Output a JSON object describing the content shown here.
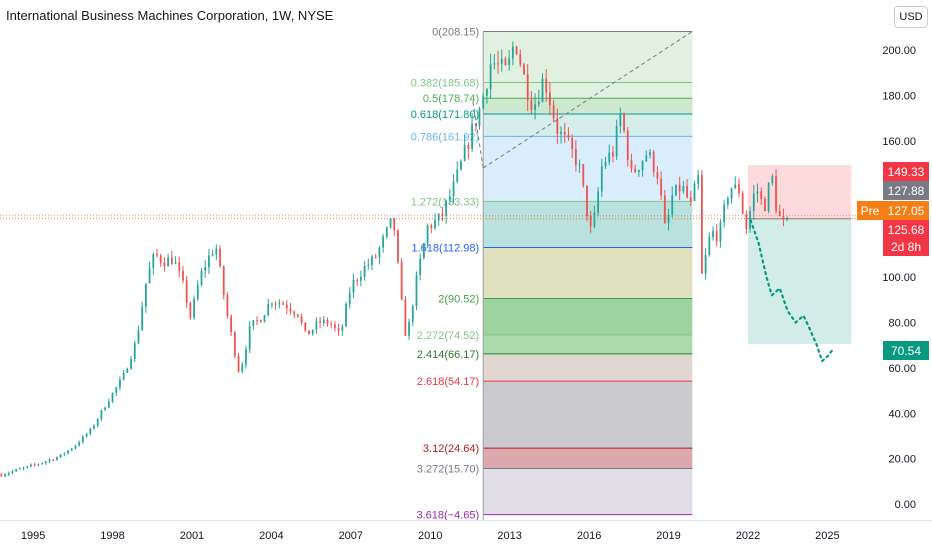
{
  "header": {
    "symbol_title": "International Business Machines Corporation, 1W, NYSE",
    "currency_button": "USD"
  },
  "colors": {
    "up": "#26a69a",
    "down": "#ef5350",
    "background": "#ffffff",
    "axis_text": "#131722"
  },
  "chart_data": {
    "type": "candlestick",
    "title": "International Business Machines Corporation, 1W, NYSE",
    "x_ticks": [
      "1995",
      "1998",
      "2001",
      "2004",
      "2007",
      "2010",
      "2013",
      "2016",
      "2019",
      "2022",
      "2025"
    ],
    "y_ticks": [
      "0.00",
      "20.00",
      "40.00",
      "60.00",
      "80.00",
      "100.00",
      "120.00",
      "140.00",
      "160.00",
      "180.00",
      "200.00"
    ],
    "y_range": [
      -7,
      222
    ],
    "x_range": [
      1993.75,
      2027.1
    ],
    "price_path": [
      [
        1993.8,
        13
      ],
      [
        1995.0,
        17
      ],
      [
        1996.0,
        21
      ],
      [
        1996.6,
        26
      ],
      [
        1997.2,
        33
      ],
      [
        1997.8,
        45
      ],
      [
        1998.4,
        56
      ],
      [
        1998.9,
        72
      ],
      [
        1999.3,
        100
      ],
      [
        1999.6,
        110
      ],
      [
        1999.9,
        107
      ],
      [
        2000.3,
        108
      ],
      [
        2000.7,
        95
      ],
      [
        2000.95,
        82
      ],
      [
        2001.3,
        100
      ],
      [
        2001.6,
        108
      ],
      [
        2001.9,
        114
      ],
      [
        2002.3,
        85
      ],
      [
        2002.6,
        68
      ],
      [
        2002.8,
        57
      ],
      [
        2003.2,
        78
      ],
      [
        2003.6,
        82
      ],
      [
        2004.0,
        90
      ],
      [
        2004.5,
        88
      ],
      [
        2005.0,
        84
      ],
      [
        2005.3,
        74
      ],
      [
        2005.8,
        80
      ],
      [
        2006.2,
        80
      ],
      [
        2006.6,
        74
      ],
      [
        2007.0,
        96
      ],
      [
        2007.5,
        104
      ],
      [
        2007.9,
        108
      ],
      [
        2008.3,
        118
      ],
      [
        2008.6,
        126
      ],
      [
        2008.9,
        90
      ],
      [
        2009.1,
        72
      ],
      [
        2009.5,
        100
      ],
      [
        2009.9,
        122
      ],
      [
        2010.4,
        126
      ],
      [
        2010.9,
        140
      ],
      [
        2011.5,
        162
      ],
      [
        2011.9,
        175
      ],
      [
        2012.3,
        195
      ],
      [
        2012.9,
        190
      ],
      [
        2013.2,
        205
      ],
      [
        2013.6,
        185
      ],
      [
        2013.9,
        175
      ],
      [
        2014.3,
        188
      ],
      [
        2014.8,
        165
      ],
      [
        2015.2,
        158
      ],
      [
        2015.6,
        150
      ],
      [
        2015.9,
        130
      ],
      [
        2016.1,
        118
      ],
      [
        2016.5,
        150
      ],
      [
        2016.9,
        155
      ],
      [
        2017.2,
        172
      ],
      [
        2017.6,
        145
      ],
      [
        2017.9,
        150
      ],
      [
        2018.2,
        155
      ],
      [
        2018.6,
        145
      ],
      [
        2018.9,
        118
      ],
      [
        2019.1,
        135
      ],
      [
        2019.5,
        140
      ],
      [
        2019.9,
        130
      ],
      [
        2020.1,
        150
      ],
      [
        2020.25,
        100
      ],
      [
        2020.6,
        120
      ],
      [
        2020.9,
        118
      ],
      [
        2021.3,
        140
      ],
      [
        2021.7,
        138
      ],
      [
        2021.9,
        120
      ],
      [
        2022.1,
        130
      ],
      [
        2022.3,
        140
      ],
      [
        2022.6,
        130
      ],
      [
        2022.9,
        145
      ],
      [
        2023.1,
        128
      ],
      [
        2023.4,
        122
      ],
      [
        2023.6,
        125.68
      ]
    ],
    "fibonacci_levels": [
      {
        "label": "0(208.15)",
        "value": 208.15,
        "color": "#787b86"
      },
      {
        "label": "0.382(185.68)",
        "value": 185.68,
        "color": "#81c784"
      },
      {
        "label": "0.5(178.74)",
        "value": 178.74,
        "color": "#4caf50"
      },
      {
        "label": "0.618(171.80)",
        "value": 171.8,
        "color": "#089981"
      },
      {
        "label": "0.786(161.92)",
        "value": 161.92,
        "color": "#64b5f6"
      },
      {
        "label": "1.272(133.33)",
        "value": 133.33,
        "color": "#81c784"
      },
      {
        "label": "1.618(112.98)",
        "value": 112.98,
        "color": "#2962ff"
      },
      {
        "label": "2(90.52)",
        "value": 90.52,
        "color": "#43a047"
      },
      {
        "label": "2.272(74.52)",
        "value": 74.52,
        "color": "#81c784"
      },
      {
        "label": "2.414(66.17)",
        "value": 66.17,
        "color": "#2e7d32"
      },
      {
        "label": "2.618(54.17)",
        "value": 54.17,
        "color": "#f23645"
      },
      {
        "label": "3.12(24.64)",
        "value": 24.64,
        "color": "#b71c1c"
      },
      {
        "label": "3.272(15.70)",
        "value": 15.7,
        "color": "#787b86"
      },
      {
        "label": "3.618(−4.65)",
        "value": -4.65,
        "color": "#9c27b0"
      }
    ],
    "fib_zones": [
      {
        "from": 208.15,
        "to": 178.74,
        "color": "#c8e6c9"
      },
      {
        "from": 178.74,
        "to": 171.8,
        "color": "#a5d6a7"
      },
      {
        "from": 171.8,
        "to": 161.92,
        "color": "#b2dfdb"
      },
      {
        "from": 161.92,
        "to": 133.33,
        "color": "#bbdefb"
      },
      {
        "from": 133.33,
        "to": 112.98,
        "color": "#80cbc4"
      },
      {
        "from": 112.98,
        "to": 90.52,
        "color": "#c5c98a"
      },
      {
        "from": 90.52,
        "to": 74.52,
        "color": "#4caf50"
      },
      {
        "from": 74.52,
        "to": 66.17,
        "color": "#66bb6a"
      },
      {
        "from": 66.17,
        "to": 54.17,
        "color": "#c8b6ad"
      },
      {
        "from": 54.17,
        "to": 24.64,
        "color": "#9e9ea7"
      },
      {
        "from": 24.64,
        "to": 15.7,
        "color": "#c0606a"
      },
      {
        "from": 15.7,
        "to": -4.65,
        "color": "#c9c2d0"
      }
    ],
    "fib_time_range": [
      2012.0,
      2019.9
    ],
    "trend_line": {
      "from": [
        2012.0,
        148
      ],
      "to": [
        2019.9,
        208.15
      ]
    },
    "position_tool": {
      "x_range": [
        2022.0,
        2025.9
      ],
      "entry": 125.68,
      "stop": 149.33,
      "target": 70.54
    },
    "projection_path": [
      [
        2022.1,
        125
      ],
      [
        2022.4,
        115
      ],
      [
        2022.7,
        100
      ],
      [
        2022.9,
        92
      ],
      [
        2023.2,
        95
      ],
      [
        2023.5,
        85
      ],
      [
        2023.8,
        80
      ],
      [
        2024.1,
        83
      ],
      [
        2024.3,
        78
      ],
      [
        2024.6,
        70
      ],
      [
        2024.8,
        63
      ],
      [
        2025.0,
        65
      ],
      [
        2025.2,
        68
      ]
    ],
    "current_price_line": 125.68,
    "price_labels": [
      {
        "text": "149.33",
        "value": 149.33,
        "color": "#f23645"
      },
      {
        "text": "127.88",
        "value": 127.88,
        "color": "#787b86"
      },
      {
        "text": "127.05",
        "value": 127.05,
        "color": "#f57f17"
      },
      {
        "text": "125.68",
        "value": 125.68,
        "color": "#f23645"
      },
      {
        "text": "70.54",
        "value": 70.54,
        "color": "#089981"
      }
    ],
    "pre_market_tag": "Pre",
    "countdown": "2d 8h"
  }
}
